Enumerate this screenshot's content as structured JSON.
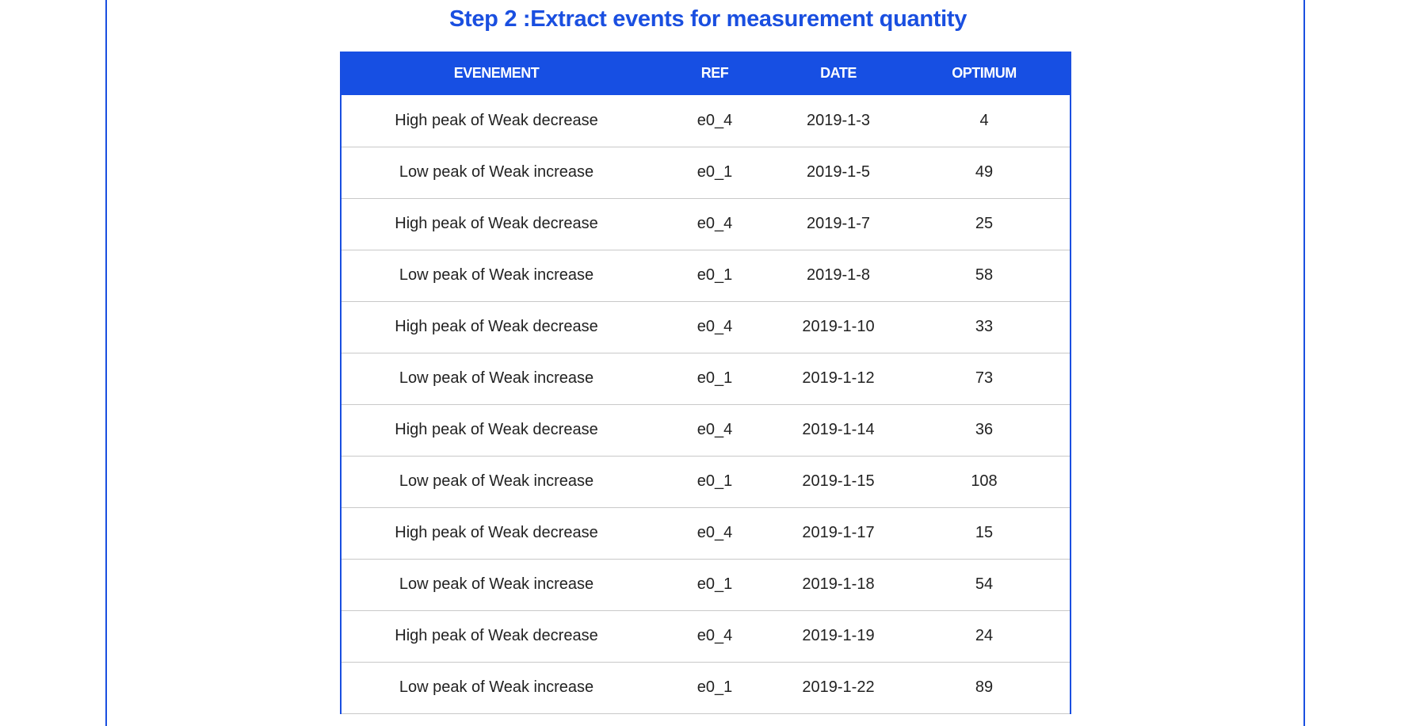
{
  "page": {
    "title": "Step 2 :Extract events for measurement quantity"
  },
  "table": {
    "headers": [
      "EVENEMENT",
      "REF",
      "DATE",
      "OPTIMUM"
    ],
    "rows": [
      [
        "High peak of Weak decrease",
        "e0_4",
        "2019-1-3",
        "4"
      ],
      [
        "Low peak of Weak increase",
        "e0_1",
        "2019-1-5",
        "49"
      ],
      [
        "High peak of Weak decrease",
        "e0_4",
        "2019-1-7",
        "25"
      ],
      [
        "Low peak of Weak increase",
        "e0_1",
        "2019-1-8",
        "58"
      ],
      [
        "High peak of Weak decrease",
        "e0_4",
        "2019-1-10",
        "33"
      ],
      [
        "Low peak of Weak increase",
        "e0_1",
        "2019-1-12",
        "73"
      ],
      [
        "High peak of Weak decrease",
        "e0_4",
        "2019-1-14",
        "36"
      ],
      [
        "Low peak of Weak increase",
        "e0_1",
        "2019-1-15",
        "108"
      ],
      [
        "High peak of Weak decrease",
        "e0_4",
        "2019-1-17",
        "15"
      ],
      [
        "Low peak of Weak increase",
        "e0_1",
        "2019-1-18",
        "54"
      ],
      [
        "High peak of Weak decrease",
        "e0_4",
        "2019-1-19",
        "24"
      ],
      [
        "Low peak of Weak increase",
        "e0_1",
        "2019-1-22",
        "89"
      ]
    ]
  },
  "colors": {
    "accent": "#174fe3",
    "header_text": "#ffffff",
    "row_divider": "#c9c9c9"
  }
}
